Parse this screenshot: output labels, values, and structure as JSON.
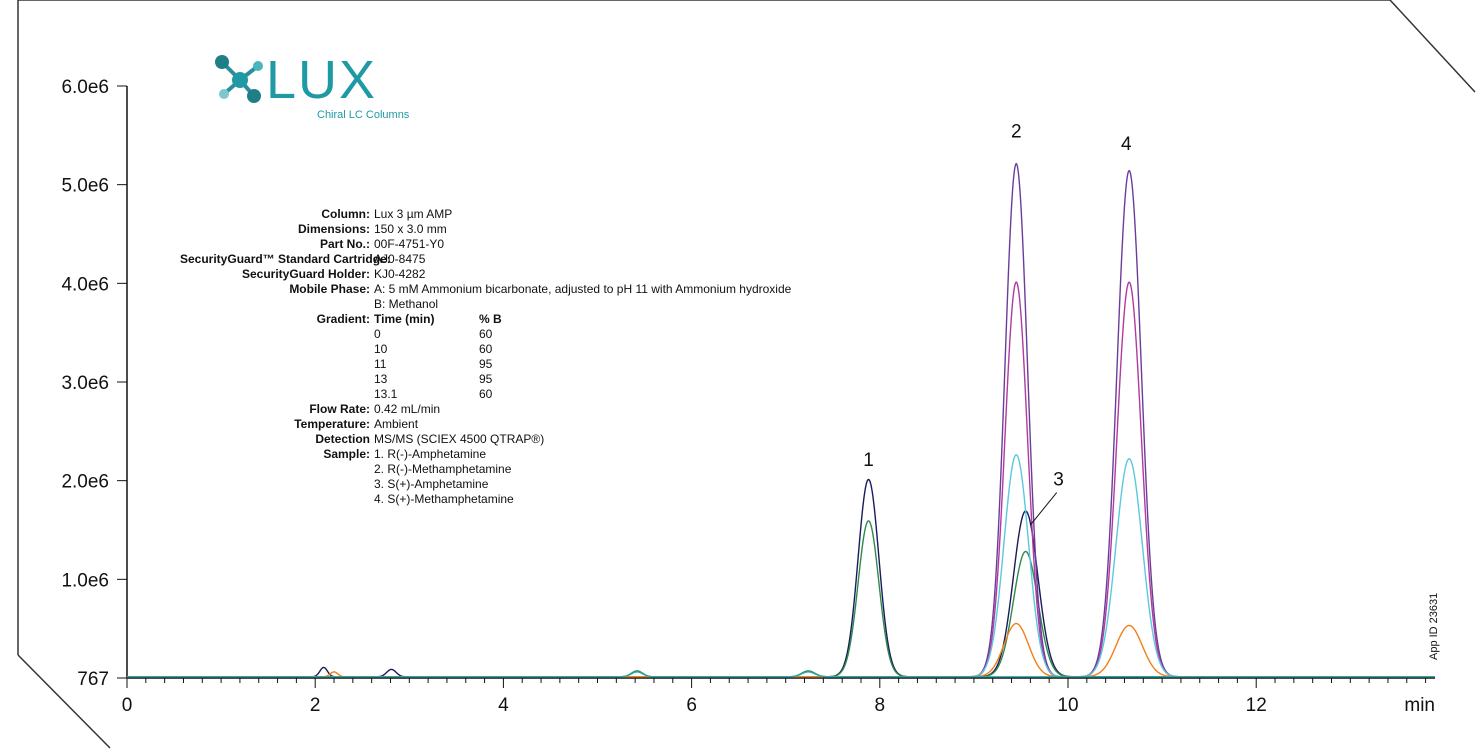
{
  "logo": {
    "word": "LUX",
    "subtitle": "Chiral LC Columns"
  },
  "app_id": "App ID 23631",
  "conditions": {
    "column": {
      "label": "Column:",
      "value": "Lux 3 µm AMP"
    },
    "dimensions": {
      "label": "Dimensions:",
      "value": "150 x 3.0 mm"
    },
    "part_no": {
      "label": "Part No.:",
      "value": "00F-4751-Y0"
    },
    "cartridge": {
      "label": "SecurityGuard™ Standard Cartridge:",
      "value": "AJ0-8475"
    },
    "holder": {
      "label": "SecurityGuard Holder:",
      "value": "KJ0-4282"
    },
    "mobile_phase": {
      "label": "Mobile Phase:",
      "value_a": "A: 5 mM Ammonium bicarbonate, adjusted to pH 11 with Ammonium hydroxide",
      "value_b": "B: Methanol"
    },
    "gradient": {
      "label": "Gradient:",
      "headers": [
        "Time (min)",
        "% B"
      ],
      "rows": [
        [
          "0",
          "60"
        ],
        [
          "10",
          "60"
        ],
        [
          "11",
          "95"
        ],
        [
          "13",
          "95"
        ],
        [
          "13.1",
          "60"
        ]
      ]
    },
    "flow_rate": {
      "label": "Flow Rate:",
      "value": "0.42 mL/min"
    },
    "temperature": {
      "label": "Temperature:",
      "value": "Ambient"
    },
    "detection": {
      "label": "Detection",
      "value": "MS/MS (SCIEX 4500 QTRAP®)"
    },
    "sample": {
      "label": "Sample:",
      "items": [
        "1. R(-)-Amphetamine",
        "2. R(-)-Methamphetamine",
        "3. S(+)-Amphetamine",
        "4. S(+)-Methamphetamine"
      ]
    }
  },
  "chart_data": {
    "type": "line",
    "xlabel": "min",
    "ylabel": "",
    "xlim": [
      0,
      13.9
    ],
    "ylim": [
      0,
      6000000
    ],
    "x_ticks": [
      0,
      2,
      4,
      6,
      8,
      10,
      12
    ],
    "x_tick_labels": [
      "0",
      "2",
      "4",
      "6",
      "8",
      "10",
      "12"
    ],
    "y_ticks": [
      0,
      1000000,
      2000000,
      3000000,
      4000000,
      5000000,
      6000000
    ],
    "y_tick_labels": [
      "767",
      "1.0e6",
      "2.0e6",
      "3.0e6",
      "4.0e6",
      "5.0e6",
      "6.0e6"
    ],
    "peak_labels": [
      {
        "text": "1",
        "x": 7.88,
        "y": 2150000
      },
      {
        "text": "2",
        "x": 9.45,
        "y": 5480000
      },
      {
        "text": "3",
        "x": 9.9,
        "y": 1950000
      },
      {
        "text": "4",
        "x": 10.62,
        "y": 5350000
      }
    ],
    "series": [
      {
        "color": "#1a1a5e",
        "peaks": [
          [
            2.09,
            95000,
            0.04
          ],
          [
            2.81,
            75000,
            0.05
          ],
          [
            7.88,
            2000000,
            0.11
          ],
          [
            9.55,
            1680000,
            0.13
          ]
        ]
      },
      {
        "color": "#2e8b4a",
        "peaks": [
          [
            5.42,
            60000,
            0.06
          ],
          [
            7.24,
            60000,
            0.07
          ],
          [
            7.88,
            1580000,
            0.11
          ],
          [
            9.55,
            1270000,
            0.13
          ]
        ]
      },
      {
        "color": "#6a3d9a",
        "peaks": [
          [
            9.45,
            5200000,
            0.12
          ],
          [
            10.65,
            5130000,
            0.13
          ]
        ]
      },
      {
        "color": "#b03aa0",
        "peaks": [
          [
            9.45,
            4000000,
            0.12
          ],
          [
            10.65,
            4000000,
            0.13
          ]
        ]
      },
      {
        "color": "#5bc8dc",
        "peaks": [
          [
            9.45,
            2250000,
            0.13
          ],
          [
            10.65,
            2210000,
            0.14
          ]
        ]
      },
      {
        "color": "#f07f1a",
        "peaks": [
          [
            2.2,
            50000,
            0.04
          ],
          [
            9.45,
            540000,
            0.13
          ],
          [
            10.65,
            520000,
            0.14
          ]
        ]
      },
      {
        "color": "#2aa7a7",
        "peaks": [
          [
            5.42,
            50000,
            0.06
          ],
          [
            7.24,
            50000,
            0.07
          ]
        ]
      }
    ]
  },
  "colors": {
    "brand": "#1f9aa4"
  }
}
